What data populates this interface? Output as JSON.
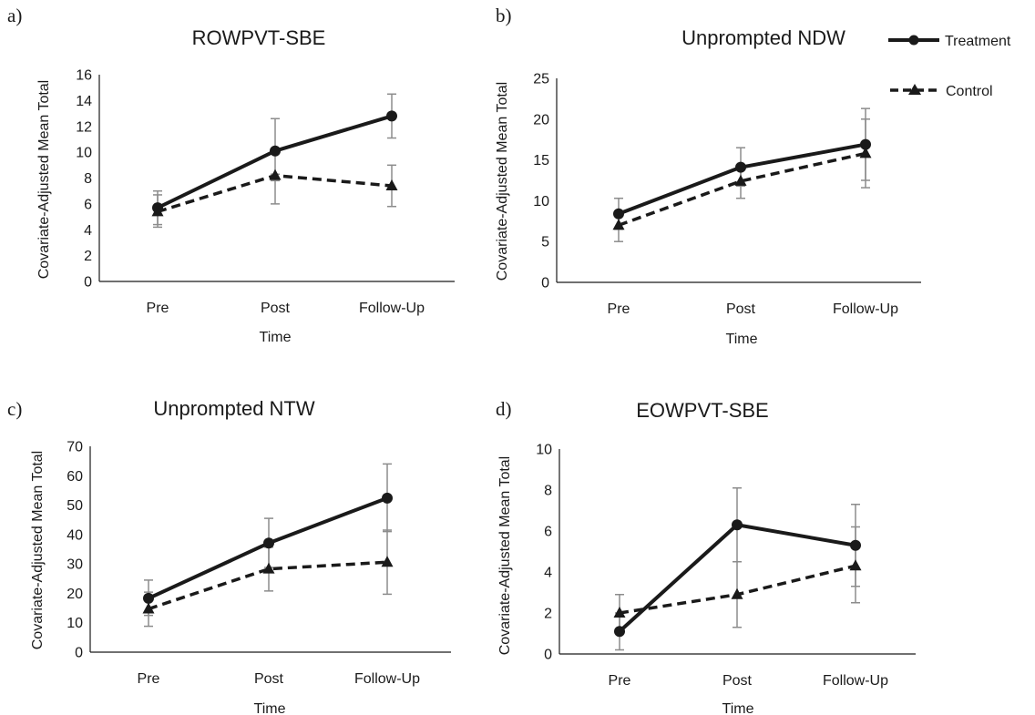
{
  "legend": {
    "treatment_label": "Treatment",
    "control_label": "Control"
  },
  "chart_data": [
    {
      "type": "line",
      "panel_label": "a)",
      "title": "ROWPVT-SBE",
      "xlabel": "Time",
      "ylabel": "Covariate-Adjusted Mean Total",
      "categories": [
        "Pre",
        "Post",
        "Follow-Up"
      ],
      "ylim": [
        0,
        16
      ],
      "yticks": [
        0,
        2,
        4,
        6,
        8,
        10,
        12,
        14,
        16
      ],
      "series": [
        {
          "name": "Treatment",
          "values": [
            5.7,
            10.1,
            12.8
          ],
          "error_low": [
            4.4,
            7.8,
            11.1
          ],
          "error_high": [
            7.0,
            12.6,
            14.5
          ]
        },
        {
          "name": "Control",
          "values": [
            5.4,
            8.2,
            7.4
          ],
          "error_low": [
            4.2,
            6.0,
            5.8
          ],
          "error_high": [
            6.7,
            8.3,
            9.0
          ]
        }
      ]
    },
    {
      "type": "line",
      "panel_label": "b)",
      "title": "Unprompted NDW",
      "xlabel": "Time",
      "ylabel": "Covariate-Adjusted Mean Total",
      "categories": [
        "Pre",
        "Post",
        "Follow-Up"
      ],
      "ylim": [
        0,
        25
      ],
      "yticks": [
        0,
        5,
        10,
        15,
        20,
        25
      ],
      "series": [
        {
          "name": "Treatment",
          "values": [
            8.4,
            14.1,
            16.9
          ],
          "error_low": [
            6.5,
            11.8,
            12.5
          ],
          "error_high": [
            10.3,
            16.5,
            21.3
          ]
        },
        {
          "name": "Control",
          "values": [
            7.0,
            12.4,
            15.8
          ],
          "error_low": [
            5.0,
            10.3,
            11.6
          ],
          "error_high": [
            8.7,
            14.3,
            20.0
          ]
        }
      ]
    },
    {
      "type": "line",
      "panel_label": "c)",
      "title": "Unprompted NTW",
      "xlabel": "Time",
      "ylabel": "Covariate-Adjusted Mean Total",
      "categories": [
        "Pre",
        "Post",
        "Follow-Up"
      ],
      "ylim": [
        0,
        70
      ],
      "yticks": [
        0,
        10,
        20,
        30,
        40,
        50,
        60,
        70
      ],
      "series": [
        {
          "name": "Treatment",
          "values": [
            18.3,
            37.1,
            52.4
          ],
          "error_low": [
            12.5,
            28.8,
            41.0
          ],
          "error_high": [
            24.5,
            45.5,
            64.0
          ]
        },
        {
          "name": "Control",
          "values": [
            14.7,
            28.3,
            30.6
          ],
          "error_low": [
            8.8,
            20.8,
            19.7
          ],
          "error_high": [
            20.4,
            35.7,
            41.5
          ]
        }
      ]
    },
    {
      "type": "line",
      "panel_label": "d)",
      "title": "EOWPVT-SBE",
      "xlabel": "Time",
      "ylabel": "Covariate-Adjusted Mean Total",
      "categories": [
        "Pre",
        "Post",
        "Follow-Up"
      ],
      "ylim": [
        0,
        10
      ],
      "yticks": [
        0,
        2,
        4,
        6,
        8,
        10
      ],
      "series": [
        {
          "name": "Treatment",
          "values": [
            1.1,
            6.3,
            5.3
          ],
          "error_low": [
            0.2,
            4.5,
            3.3
          ],
          "error_high": [
            2.0,
            8.1,
            7.3
          ]
        },
        {
          "name": "Control",
          "values": [
            2.0,
            2.9,
            4.3
          ],
          "error_low": [
            1.1,
            1.3,
            2.5
          ],
          "error_high": [
            2.9,
            4.5,
            6.2
          ]
        }
      ]
    }
  ]
}
